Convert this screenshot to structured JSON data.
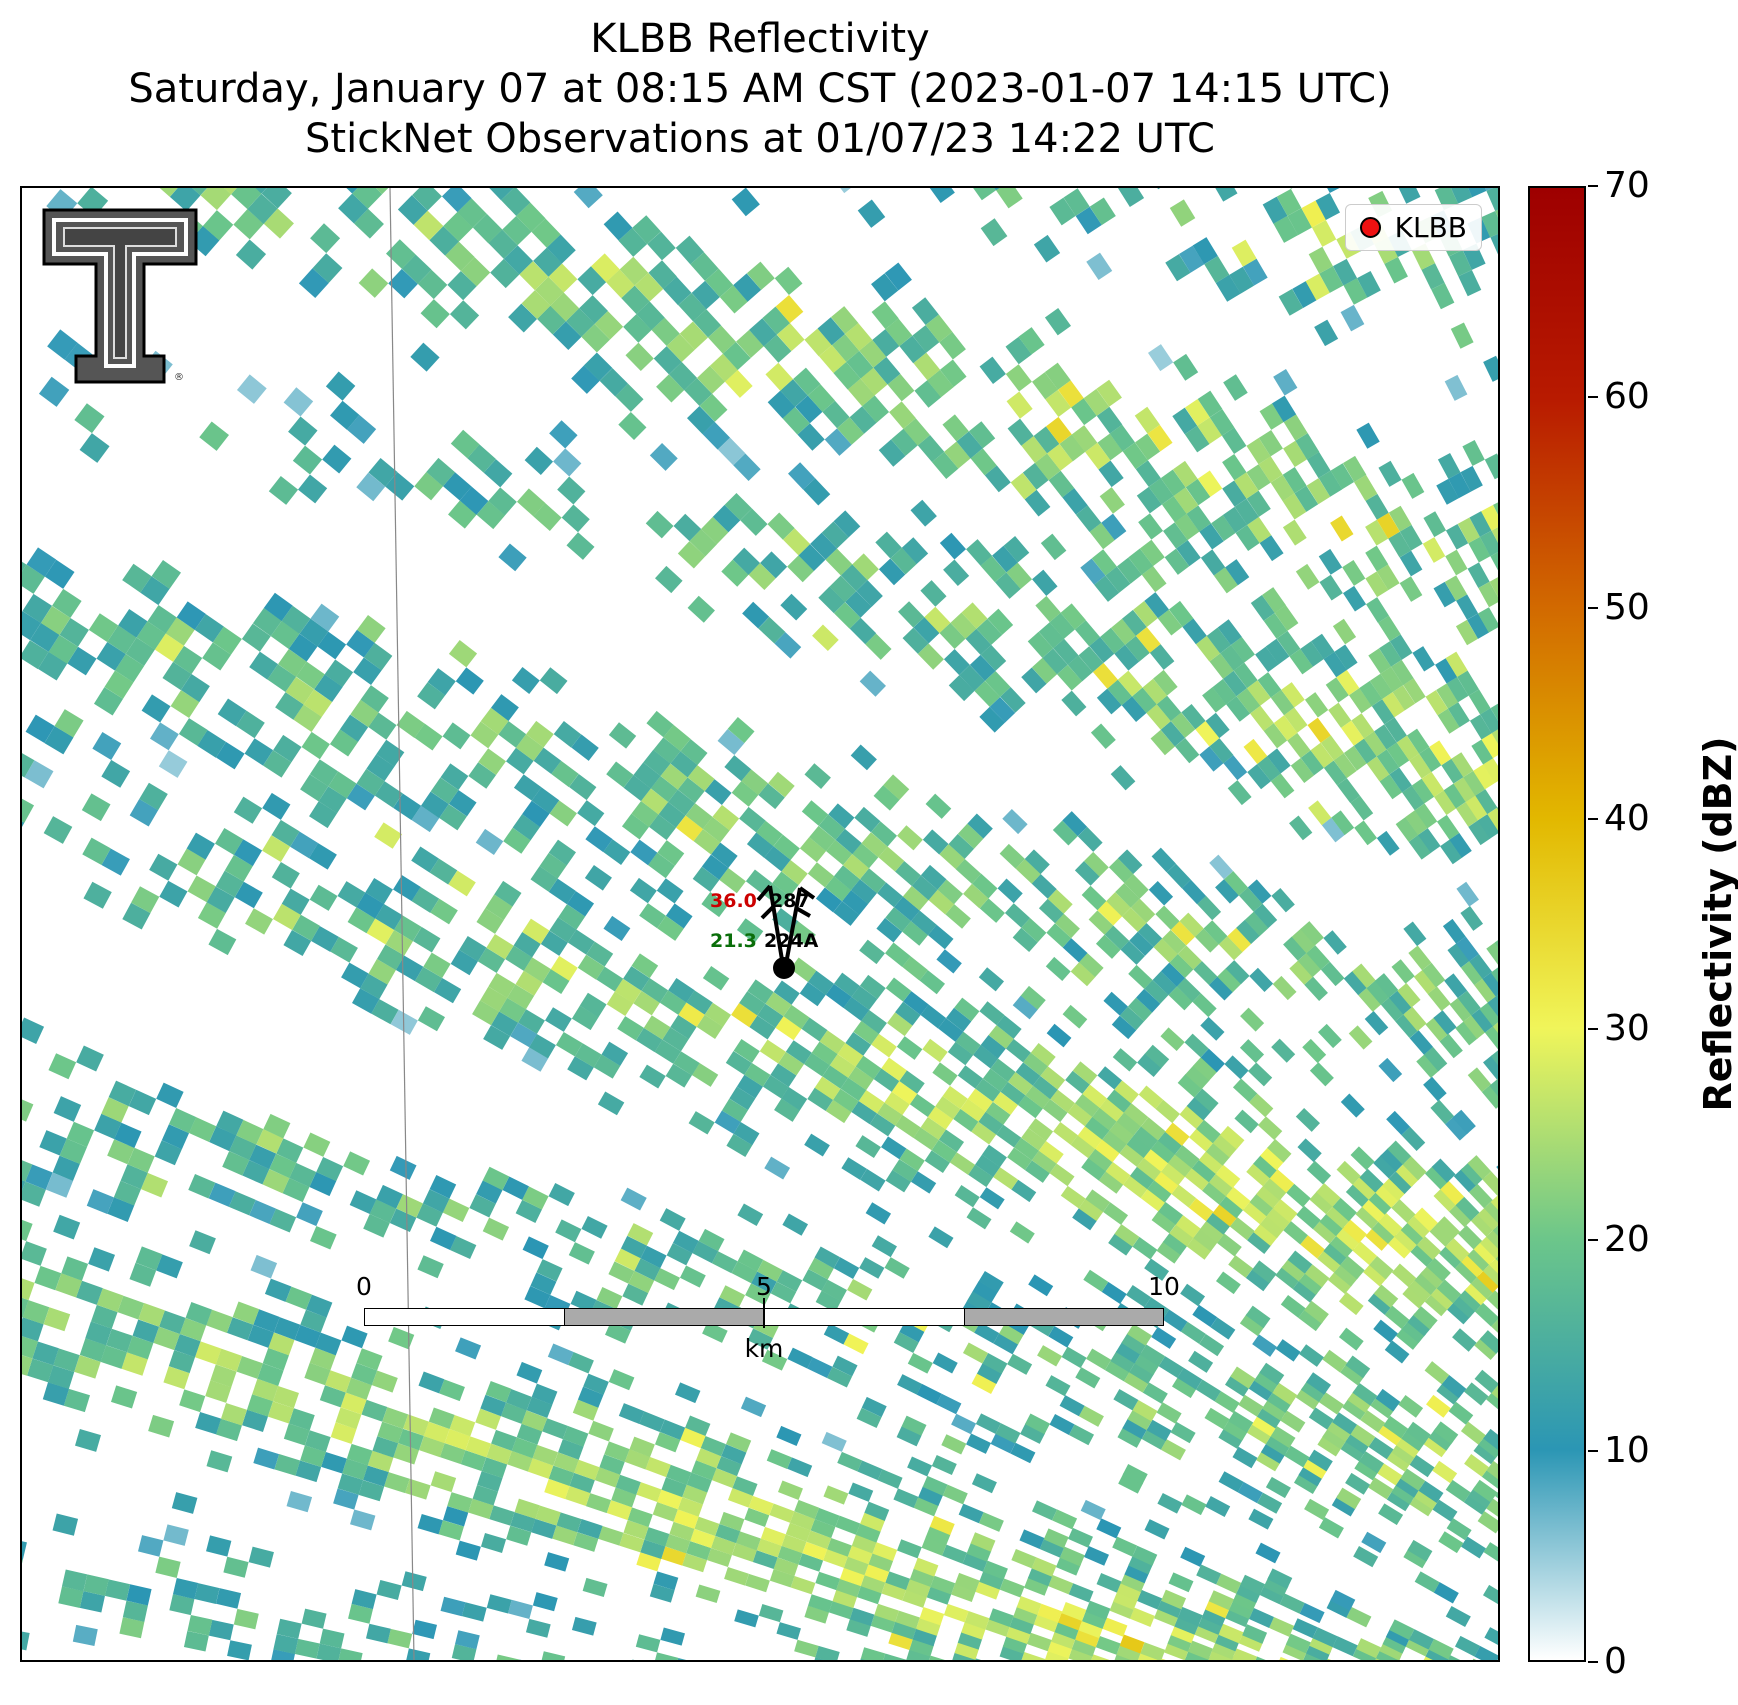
{
  "title": {
    "line1": "KLBB Reflectivity",
    "line2": "Saturday, January 07 at 08:15 AM CST (2023-01-07 14:15 UTC)",
    "line3": "StickNet Observations at 01/07/23 14:22 UTC"
  },
  "legend": {
    "label": "KLBB",
    "marker_color": "#ee1111"
  },
  "logo": {
    "icon": "texas-tech-double-t-logo-icon"
  },
  "stations": [
    {
      "temp": "36.0",
      "dewpoint": "21.3",
      "id": "287"
    },
    {
      "id": "224A"
    }
  ],
  "scale_bar": {
    "ticks": [
      "0",
      "5",
      "10"
    ],
    "unit": "km"
  },
  "colorbar": {
    "title": "Reflectivity (dBZ)",
    "min": 0,
    "max": 70,
    "ticks": [
      "0",
      "10",
      "20",
      "30",
      "40",
      "50",
      "60",
      "70"
    ],
    "colors": [
      "#ffffff",
      "#2b96b4",
      "#6cc68a",
      "#f0f55a",
      "#e2b800",
      "#d26a00",
      "#b81a00",
      "#9e0000"
    ]
  },
  "colors": {
    "temp_text": "#cc0000",
    "dewpoint_text": "#0a6e0a",
    "id_text": "#000000"
  }
}
